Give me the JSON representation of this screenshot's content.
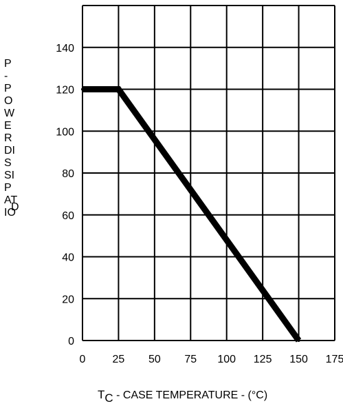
{
  "chart_data": {
    "type": "line",
    "x": [
      0,
      25,
      150
    ],
    "series": [
      {
        "values": [
          120,
          120,
          0
        ]
      }
    ],
    "xlim": [
      0,
      175
    ],
    "ylim": [
      0,
      160
    ],
    "xticks": [
      "0",
      "25",
      "50",
      "75",
      "100",
      "125",
      "150",
      "175"
    ],
    "yticks": [
      "0",
      "20",
      "40",
      "60",
      "80",
      "100",
      "120",
      "140"
    ],
    "ylabel_lines": [
      "P",
      "-",
      "P",
      "O",
      "W",
      "E",
      "R",
      "DI",
      "S",
      "SI",
      "P",
      "AT",
      "IO",
      "D"
    ],
    "xlabel": {
      "prefix": "T",
      "subscript": "C",
      "main": " - CASE TEMPERATURE - (°C)"
    },
    "grid": true,
    "line_color": "#000000"
  }
}
